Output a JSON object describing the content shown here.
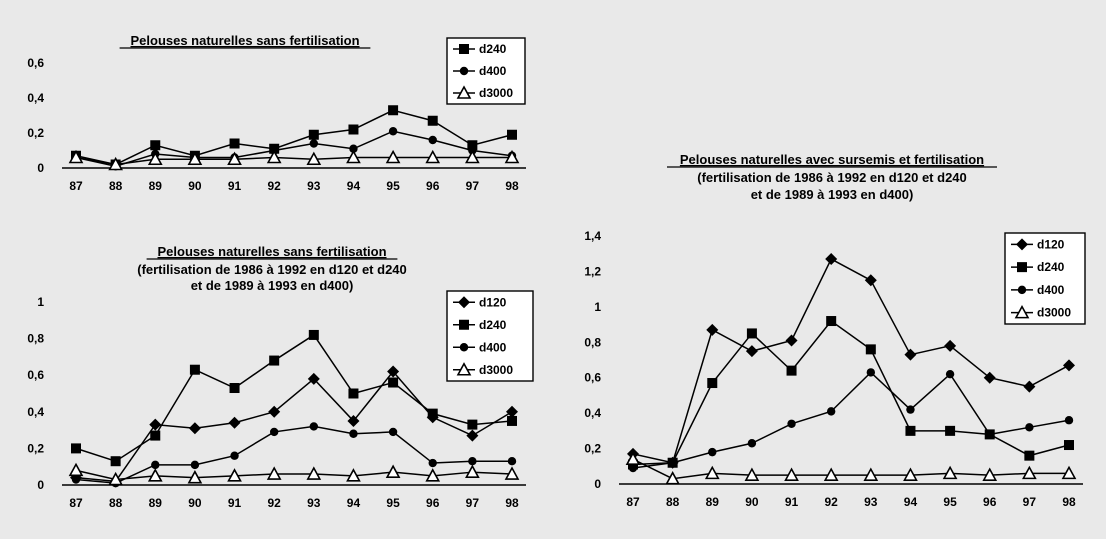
{
  "chart_data": [
    {
      "type": "line",
      "title": "Pelouses naturelles sans fertilisation",
      "subtitle": [],
      "xlabel": "",
      "ylabel": "",
      "categories": [
        "87",
        "88",
        "89",
        "90",
        "91",
        "92",
        "93",
        "94",
        "95",
        "96",
        "97",
        "98"
      ],
      "ylim": [
        0,
        0.6
      ],
      "yticks": [
        0,
        0.2,
        0.4,
        0.6
      ],
      "ytick_labels": [
        "0",
        "0,2",
        "0,4",
        "0,6"
      ],
      "legend_position": "top-right",
      "series": [
        {
          "name": "d240",
          "marker": "square",
          "values": [
            0.07,
            0.02,
            0.13,
            0.07,
            0.14,
            0.11,
            0.19,
            0.22,
            0.33,
            0.27,
            0.13,
            0.19
          ]
        },
        {
          "name": "d400",
          "marker": "circle",
          "values": [
            0.06,
            0.01,
            0.08,
            0.06,
            0.06,
            0.1,
            0.14,
            0.11,
            0.21,
            0.16,
            0.1,
            0.07
          ]
        },
        {
          "name": "d3000",
          "marker": "triangle",
          "values": [
            0.06,
            0.02,
            0.05,
            0.05,
            0.05,
            0.06,
            0.05,
            0.06,
            0.06,
            0.06,
            0.06,
            0.06
          ]
        }
      ]
    },
    {
      "type": "line",
      "title": "Pelouses naturelles sans fertilisation",
      "subtitle": [
        "(fertilisation de 1986 à 1992 en d120 et d240",
        "et de 1989 à 1993 en d400)"
      ],
      "xlabel": "",
      "ylabel": "",
      "categories": [
        "87",
        "88",
        "89",
        "90",
        "91",
        "92",
        "93",
        "94",
        "95",
        "96",
        "97",
        "98"
      ],
      "ylim": [
        0,
        1
      ],
      "yticks": [
        0,
        0.2,
        0.4,
        0.6,
        0.8,
        1
      ],
      "ytick_labels": [
        "0",
        "0,2",
        "0,4",
        "0,6",
        "0,8",
        "1"
      ],
      "legend_position": "top-right",
      "series": [
        {
          "name": "d120",
          "marker": "diamond",
          "values": [
            0.04,
            0.02,
            0.33,
            0.31,
            0.34,
            0.4,
            0.58,
            0.35,
            0.62,
            0.37,
            0.27,
            0.4
          ]
        },
        {
          "name": "d240",
          "marker": "square",
          "values": [
            0.2,
            0.13,
            0.27,
            0.63,
            0.53,
            0.68,
            0.82,
            0.5,
            0.56,
            0.39,
            0.33,
            0.35
          ]
        },
        {
          "name": "d400",
          "marker": "circle",
          "values": [
            0.03,
            0.01,
            0.11,
            0.11,
            0.16,
            0.29,
            0.32,
            0.28,
            0.29,
            0.12,
            0.13,
            0.13
          ]
        },
        {
          "name": "d3000",
          "marker": "triangle",
          "values": [
            0.08,
            0.03,
            0.05,
            0.04,
            0.05,
            0.06,
            0.06,
            0.05,
            0.07,
            0.05,
            0.07,
            0.06
          ]
        }
      ]
    },
    {
      "type": "line",
      "title": "Pelouses naturelles avec sursemis et fertilisation",
      "subtitle": [
        "(fertilisation de 1986 à 1992 en d120 et d240",
        "et de 1989 à 1993 en d400)"
      ],
      "xlabel": "",
      "ylabel": "",
      "categories": [
        "87",
        "88",
        "89",
        "90",
        "91",
        "92",
        "93",
        "94",
        "95",
        "96",
        "97",
        "98"
      ],
      "ylim": [
        0,
        1.4
      ],
      "yticks": [
        0,
        0.2,
        0.4,
        0.6,
        0.8,
        1,
        1.2,
        1.4
      ],
      "ytick_labels": [
        "0",
        "0,2",
        "0,4",
        "0,6",
        "0,8",
        "1",
        "1,2",
        "1,4"
      ],
      "legend_position": "top-right",
      "series": [
        {
          "name": "d120",
          "marker": "diamond",
          "values": [
            0.17,
            0.12,
            0.87,
            0.75,
            0.81,
            1.27,
            1.15,
            0.73,
            0.78,
            0.6,
            0.55,
            0.67
          ]
        },
        {
          "name": "d240",
          "marker": "square",
          "values": [
            0.11,
            0.12,
            0.57,
            0.85,
            0.64,
            0.92,
            0.76,
            0.3,
            0.3,
            0.28,
            0.16,
            0.22
          ]
        },
        {
          "name": "d400",
          "marker": "circle",
          "values": [
            0.09,
            0.12,
            0.18,
            0.23,
            0.34,
            0.41,
            0.63,
            0.42,
            0.62,
            0.28,
            0.32,
            0.36
          ]
        },
        {
          "name": "d3000",
          "marker": "triangle",
          "values": [
            0.14,
            0.03,
            0.06,
            0.05,
            0.05,
            0.05,
            0.05,
            0.05,
            0.06,
            0.05,
            0.06,
            0.06
          ]
        }
      ]
    }
  ]
}
